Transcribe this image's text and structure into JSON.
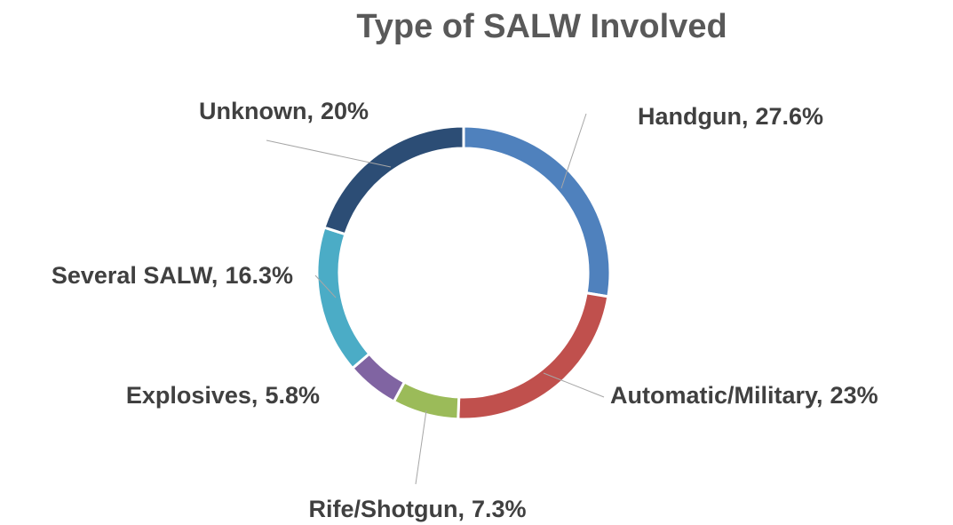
{
  "chart_data": {
    "type": "donut",
    "title": "Type of SALW Involved",
    "categories": [
      "Handgun,",
      "Automatic/Military,",
      "Rife/Shotgun,",
      "Explosives,",
      "Several SALW,",
      "Unknown,"
    ],
    "values": [
      27.6,
      23,
      7.3,
      5.8,
      16.3,
      20
    ],
    "value_labels": [
      "27.6%",
      "23%",
      "7.3%",
      "5.8%",
      "16.3%",
      "20%"
    ],
    "colors": [
      "#4f81bd",
      "#c0504d",
      "#9bbb59",
      "#8064a2",
      "#4bacc6",
      "#2c4d75"
    ]
  }
}
